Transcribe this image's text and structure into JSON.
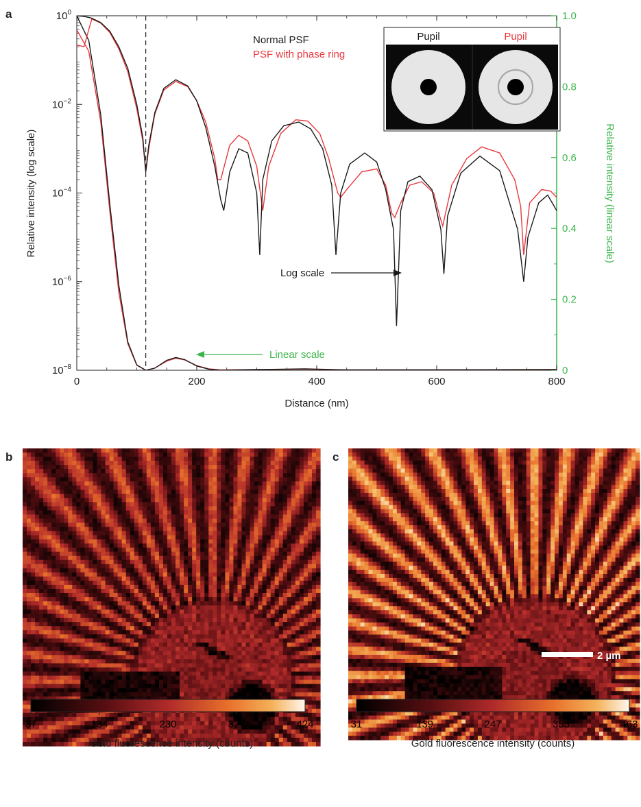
{
  "colors": {
    "normal": "#1a1a1a",
    "phase": "#e8383d",
    "green": "#3cb44b",
    "inset_bg": "#0a0a0a",
    "pupil_disk": "#e6e6e6",
    "ring": "#a8a8a8"
  },
  "panel_a": {
    "label": "a",
    "legend": {
      "normal": "Normal PSF",
      "phase": "PSF with phase ring"
    },
    "inset": {
      "pupil_left": "Pupil",
      "pupil_right": "Pupil"
    },
    "annotations": {
      "log": "Log scale",
      "linear": "Linear scale"
    }
  },
  "panel_b": {
    "label": "b",
    "colorbar": {
      "ticks": [
        "37",
        "134",
        "230",
        "327",
        "424"
      ],
      "label": "Gold fluorescence intensity (counts)"
    }
  },
  "panel_c": {
    "label": "c",
    "scalebar": "2 µm",
    "colorbar": {
      "ticks": [
        "31",
        "139",
        "247",
        "355",
        "463"
      ],
      "label": "Gold fluorescence intensity (counts)"
    }
  },
  "chart_data": [
    {
      "type": "line",
      "xlabel": "Distance (nm)",
      "ylabel": "Relative intensity (log scale)",
      "y2label": "Relative intensity (linear scale)",
      "xlim": [
        0,
        800
      ],
      "ylim_log": [
        1e-08,
        1
      ],
      "ylim_linear": [
        0,
        1
      ],
      "xticks": [
        "0",
        "200",
        "400",
        "600",
        "800"
      ],
      "yticks_log": [
        {
          "base": "10",
          "exp": "0"
        },
        {
          "base": "10",
          "exp": "−2"
        },
        {
          "base": "10",
          "exp": "−4"
        },
        {
          "base": "10",
          "exp": "−6"
        },
        {
          "base": "10",
          "exp": "−8"
        }
      ],
      "yticks_linear": [
        "0",
        "0.2",
        "0.4",
        "0.6",
        "0.8",
        "1.0"
      ],
      "dashed_line_x": 115,
      "series": [
        {
          "name": "Normal PSF",
          "scale": "log",
          "x": [
            0,
            12,
            25,
            40,
            55,
            70,
            85,
            100,
            110,
            115,
            120,
            130,
            145,
            165,
            185,
            200,
            215,
            230,
            240,
            245,
            255,
            270,
            285,
            300,
            305,
            310,
            325,
            345,
            370,
            390,
            410,
            425,
            432,
            440,
            455,
            480,
            500,
            515,
            528,
            533,
            540,
            552,
            572,
            592,
            607,
            612,
            618,
            640,
            672,
            705,
            735,
            745,
            752,
            770,
            785,
            800
          ],
          "y": [
            1,
            0.97,
            0.88,
            0.7,
            0.45,
            0.2,
            0.065,
            0.01,
            0.0018,
            0.0003,
            0.0012,
            0.0065,
            0.023,
            0.036,
            0.026,
            0.012,
            0.003,
            0.0004,
            7e-05,
            4e-05,
            0.0003,
            0.001,
            0.0008,
            0.0001,
            4e-06,
            0.0002,
            0.0015,
            0.0033,
            0.004,
            0.0028,
            0.001,
            0.00015,
            4e-06,
            0.0001,
            0.00045,
            0.0008,
            0.0005,
            0.00012,
            1.5e-05,
            1e-07,
            4e-05,
            0.00018,
            0.00024,
            0.00012,
            1.5e-05,
            1.5e-06,
            3e-05,
            0.00028,
            0.00068,
            0.00032,
            1.5e-05,
            1e-06,
            1e-05,
            6e-05,
            9e-05,
            4e-05
          ]
        },
        {
          "name": "PSF with phase ring",
          "scale": "log",
          "x": [
            0,
            12,
            25,
            40,
            55,
            70,
            85,
            100,
            110,
            115,
            120,
            130,
            145,
            165,
            185,
            200,
            215,
            230,
            235,
            240,
            255,
            270,
            285,
            300,
            310,
            320,
            340,
            365,
            385,
            405,
            420,
            435,
            440,
            450,
            475,
            500,
            515,
            525,
            530,
            540,
            555,
            575,
            595,
            605,
            610,
            625,
            650,
            675,
            705,
            730,
            740,
            745,
            755,
            775,
            790,
            800
          ],
          "y": [
            0.22,
            0.2,
            0.85,
            0.68,
            0.42,
            0.18,
            0.055,
            0.008,
            0.0015,
            0.0003,
            0.001,
            0.006,
            0.021,
            0.033,
            0.025,
            0.012,
            0.004,
            0.0006,
            0.0002,
            0.0002,
            0.0012,
            0.002,
            0.0015,
            0.0004,
            4e-05,
            0.0004,
            0.0022,
            0.0045,
            0.0042,
            0.0022,
            0.0006,
            0.0001,
            8e-05,
            0.00012,
            0.0003,
            0.00035,
            0.00015,
            3.5e-05,
            2.8e-05,
            6e-05,
            0.00015,
            0.00018,
            0.0001,
            3e-05,
            1.8e-05,
            0.00015,
            0.0006,
            0.0011,
            0.0008,
            0.0002,
            5e-05,
            4e-06,
            6e-05,
            0.00012,
            0.00011,
            8e-05
          ]
        },
        {
          "name": "Normal PSF (linear)",
          "scale": "linear",
          "x": [
            0,
            20,
            40,
            55,
            70,
            85,
            100,
            115,
            130,
            150,
            165,
            180,
            200,
            220,
            240,
            300,
            380,
            450,
            800
          ],
          "y": [
            1,
            0.93,
            0.72,
            0.47,
            0.24,
            0.08,
            0.015,
            0,
            0.006,
            0.028,
            0.036,
            0.03,
            0.012,
            0.003,
            0,
            0.002,
            0.004,
            0.001,
            0.002
          ]
        },
        {
          "name": "PSF with phase ring (linear)",
          "scale": "linear",
          "x": [
            0,
            20,
            40,
            55,
            70,
            85,
            100,
            115,
            130,
            150,
            165,
            180,
            200,
            220,
            240,
            300,
            380,
            450,
            800
          ],
          "y": [
            0.96,
            0.9,
            0.7,
            0.45,
            0.22,
            0.075,
            0.014,
            0,
            0.006,
            0.026,
            0.034,
            0.029,
            0.013,
            0.004,
            0.001,
            0.002,
            0.003,
            0.001,
            0.002
          ]
        }
      ]
    },
    {
      "type": "heatmap",
      "colormap": "hot",
      "vmin": 37,
      "vmax": 424
    },
    {
      "type": "heatmap",
      "colormap": "hot",
      "vmin": 31,
      "vmax": 463
    }
  ]
}
